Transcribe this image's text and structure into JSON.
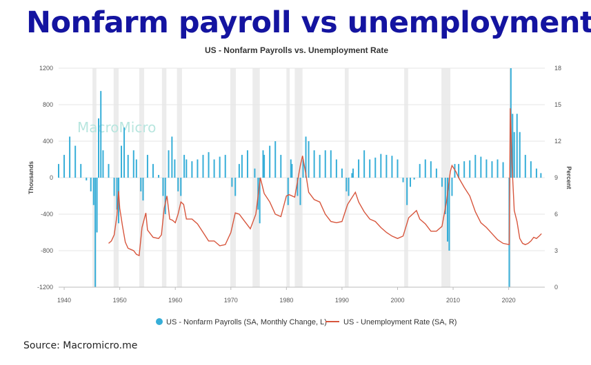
{
  "headline": "Nonfarm payroll vs unemployment",
  "source": "Source: Macromicro.me",
  "watermark": "MacroMicro",
  "colors": {
    "payroll": "#36aed8",
    "unemployment": "#d7553c",
    "recession": "#ececec",
    "headline": "#1414a0"
  },
  "chart_data": {
    "type": "bar+line",
    "title": "US - Nonfarm Payrolls vs. Unemployment Rate",
    "y_left_label": "Thousands",
    "y_right_label": "Percent",
    "y_left_range": [
      -1200,
      1200
    ],
    "y_right_range": [
      0,
      18
    ],
    "y_left_ticks": [
      "1200",
      "800",
      "400",
      "0",
      "-400",
      "-800",
      "-1200"
    ],
    "y_right_ticks": [
      "18",
      "15",
      "12",
      "9",
      "6",
      "3",
      "0"
    ],
    "x_range": [
      1939,
      2026.5
    ],
    "x_ticks": [
      "1940",
      "1950",
      "1960",
      "1970",
      "1980",
      "1990",
      "2000",
      "2010",
      "2020"
    ],
    "grid": true,
    "legend_position": "bottom",
    "recessions": [
      [
        1945.1,
        1945.8
      ],
      [
        1948.9,
        1949.8
      ],
      [
        1953.5,
        1954.4
      ],
      [
        1957.6,
        1958.4
      ],
      [
        1960.3,
        1961.2
      ],
      [
        1969.9,
        1970.9
      ],
      [
        1973.9,
        1975.2
      ],
      [
        1980.0,
        1980.6
      ],
      [
        1981.5,
        1982.9
      ],
      [
        1990.5,
        1991.2
      ],
      [
        2001.2,
        2001.9
      ],
      [
        2007.9,
        2009.5
      ],
      [
        2020.1,
        2020.4
      ]
    ],
    "series": [
      {
        "name": "US - Nonfarm Payrolls (SA, Monthly Change, L)",
        "type": "bar",
        "axis": "left",
        "points": [
          [
            1939.0,
            150
          ],
          [
            1940.0,
            250
          ],
          [
            1941.0,
            450
          ],
          [
            1942.0,
            350
          ],
          [
            1943.0,
            150
          ],
          [
            1944.0,
            -30
          ],
          [
            1944.8,
            -150
          ],
          [
            1945.3,
            -300
          ],
          [
            1945.6,
            -1200
          ],
          [
            1945.9,
            -600
          ],
          [
            1946.2,
            650
          ],
          [
            1946.6,
            950
          ],
          [
            1947.0,
            300
          ],
          [
            1948.0,
            150
          ],
          [
            1949.0,
            -200
          ],
          [
            1949.5,
            -350
          ],
          [
            1949.8,
            -500
          ],
          [
            1950.3,
            350
          ],
          [
            1950.8,
            550
          ],
          [
            1951.5,
            250
          ],
          [
            1952.5,
            300
          ],
          [
            1953.0,
            200
          ],
          [
            1953.8,
            -150
          ],
          [
            1954.2,
            -250
          ],
          [
            1955.0,
            250
          ],
          [
            1956.0,
            150
          ],
          [
            1957.0,
            30
          ],
          [
            1957.8,
            -200
          ],
          [
            1958.2,
            -400
          ],
          [
            1958.8,
            300
          ],
          [
            1959.4,
            450
          ],
          [
            1959.9,
            200
          ],
          [
            1960.5,
            -150
          ],
          [
            1961.0,
            -200
          ],
          [
            1961.6,
            250
          ],
          [
            1962.0,
            200
          ],
          [
            1963.0,
            180
          ],
          [
            1964.0,
            200
          ],
          [
            1965.0,
            250
          ],
          [
            1966.0,
            280
          ],
          [
            1967.0,
            200
          ],
          [
            1968.0,
            230
          ],
          [
            1969.0,
            250
          ],
          [
            1970.2,
            -100
          ],
          [
            1970.8,
            -200
          ],
          [
            1971.5,
            150
          ],
          [
            1972.0,
            250
          ],
          [
            1973.0,
            300
          ],
          [
            1974.3,
            100
          ],
          [
            1974.9,
            -350
          ],
          [
            1975.2,
            -500
          ],
          [
            1975.8,
            300
          ],
          [
            1976.0,
            250
          ],
          [
            1977.0,
            350
          ],
          [
            1978.0,
            400
          ],
          [
            1979.0,
            250
          ],
          [
            1980.3,
            -300
          ],
          [
            1980.8,
            200
          ],
          [
            1981.0,
            150
          ],
          [
            1982.0,
            -200
          ],
          [
            1982.5,
            -300
          ],
          [
            1983.0,
            200
          ],
          [
            1983.5,
            450
          ],
          [
            1984.0,
            400
          ],
          [
            1985.0,
            300
          ],
          [
            1986.0,
            250
          ],
          [
            1987.0,
            300
          ],
          [
            1988.0,
            300
          ],
          [
            1989.0,
            200
          ],
          [
            1990.0,
            100
          ],
          [
            1990.8,
            -150
          ],
          [
            1991.2,
            -200
          ],
          [
            1991.8,
            50
          ],
          [
            1992.0,
            100
          ],
          [
            1993.0,
            200
          ],
          [
            1994.0,
            300
          ],
          [
            1995.0,
            200
          ],
          [
            1996.0,
            220
          ],
          [
            1997.0,
            260
          ],
          [
            1998.0,
            250
          ],
          [
            1999.0,
            240
          ],
          [
            2000.0,
            200
          ],
          [
            2001.0,
            -50
          ],
          [
            2001.7,
            -300
          ],
          [
            2002.3,
            -100
          ],
          [
            2003.0,
            -20
          ],
          [
            2004.0,
            150
          ],
          [
            2005.0,
            200
          ],
          [
            2006.0,
            180
          ],
          [
            2007.0,
            100
          ],
          [
            2008.0,
            -100
          ],
          [
            2008.6,
            -400
          ],
          [
            2009.0,
            -700
          ],
          [
            2009.3,
            -800
          ],
          [
            2009.8,
            -200
          ],
          [
            2010.3,
            150
          ],
          [
            2011.0,
            150
          ],
          [
            2012.0,
            180
          ],
          [
            2013.0,
            190
          ],
          [
            2014.0,
            250
          ],
          [
            2015.0,
            230
          ],
          [
            2016.0,
            200
          ],
          [
            2017.0,
            180
          ],
          [
            2018.0,
            200
          ],
          [
            2019.0,
            170
          ],
          [
            2020.1,
            -1200
          ],
          [
            2020.4,
            1200
          ],
          [
            2020.7,
            700
          ],
          [
            2021.0,
            500
          ],
          [
            2021.5,
            700
          ],
          [
            2022.0,
            500
          ],
          [
            2023.0,
            250
          ],
          [
            2024.0,
            180
          ],
          [
            2025.0,
            100
          ],
          [
            2025.8,
            50
          ]
        ]
      },
      {
        "name": "US - Unemployment Rate (SA, R)",
        "type": "line",
        "axis": "right",
        "points": [
          [
            1948.0,
            3.6
          ],
          [
            1948.5,
            3.8
          ],
          [
            1949.0,
            4.3
          ],
          [
            1949.5,
            5.9
          ],
          [
            1949.8,
            7.9
          ],
          [
            1950.0,
            6.5
          ],
          [
            1950.5,
            5.0
          ],
          [
            1951.0,
            3.7
          ],
          [
            1951.5,
            3.2
          ],
          [
            1952.0,
            3.1
          ],
          [
            1952.5,
            3.0
          ],
          [
            1953.0,
            2.7
          ],
          [
            1953.5,
            2.6
          ],
          [
            1954.0,
            4.9
          ],
          [
            1954.7,
            6.1
          ],
          [
            1955.0,
            4.7
          ],
          [
            1956.0,
            4.1
          ],
          [
            1957.0,
            4.0
          ],
          [
            1957.5,
            4.3
          ],
          [
            1958.0,
            6.5
          ],
          [
            1958.5,
            7.5
          ],
          [
            1959.0,
            5.6
          ],
          [
            1959.5,
            5.5
          ],
          [
            1960.0,
            5.3
          ],
          [
            1960.5,
            6.0
          ],
          [
            1961.0,
            7.0
          ],
          [
            1961.5,
            6.8
          ],
          [
            1962.0,
            5.6
          ],
          [
            1963.0,
            5.6
          ],
          [
            1964.0,
            5.2
          ],
          [
            1965.0,
            4.5
          ],
          [
            1966.0,
            3.8
          ],
          [
            1967.0,
            3.8
          ],
          [
            1968.0,
            3.4
          ],
          [
            1969.0,
            3.5
          ],
          [
            1970.0,
            4.5
          ],
          [
            1970.8,
            6.1
          ],
          [
            1971.5,
            6.0
          ],
          [
            1972.5,
            5.4
          ],
          [
            1973.5,
            4.8
          ],
          [
            1974.5,
            6.0
          ],
          [
            1975.3,
            9.0
          ],
          [
            1976.0,
            7.7
          ],
          [
            1977.0,
            7.0
          ],
          [
            1978.0,
            6.0
          ],
          [
            1979.0,
            5.8
          ],
          [
            1980.0,
            7.5
          ],
          [
            1980.5,
            7.6
          ],
          [
            1981.5,
            7.4
          ],
          [
            1982.5,
            10.0
          ],
          [
            1982.9,
            10.8
          ],
          [
            1983.5,
            9.3
          ],
          [
            1984.0,
            7.8
          ],
          [
            1985.0,
            7.2
          ],
          [
            1986.0,
            7.0
          ],
          [
            1987.0,
            6.0
          ],
          [
            1988.0,
            5.4
          ],
          [
            1989.0,
            5.3
          ],
          [
            1990.0,
            5.4
          ],
          [
            1991.0,
            6.8
          ],
          [
            1992.4,
            7.8
          ],
          [
            1993.0,
            7.0
          ],
          [
            1994.0,
            6.2
          ],
          [
            1995.0,
            5.6
          ],
          [
            1996.0,
            5.4
          ],
          [
            1997.0,
            4.9
          ],
          [
            1998.0,
            4.5
          ],
          [
            1999.0,
            4.2
          ],
          [
            2000.0,
            4.0
          ],
          [
            2001.0,
            4.2
          ],
          [
            2002.0,
            5.7
          ],
          [
            2003.4,
            6.3
          ],
          [
            2004.0,
            5.6
          ],
          [
            2005.0,
            5.2
          ],
          [
            2006.0,
            4.6
          ],
          [
            2007.0,
            4.6
          ],
          [
            2008.0,
            5.0
          ],
          [
            2008.8,
            7.0
          ],
          [
            2009.5,
            9.5
          ],
          [
            2009.8,
            10.0
          ],
          [
            2010.5,
            9.5
          ],
          [
            2011.0,
            9.0
          ],
          [
            2012.0,
            8.2
          ],
          [
            2013.0,
            7.5
          ],
          [
            2014.0,
            6.2
          ],
          [
            2015.0,
            5.3
          ],
          [
            2016.0,
            4.9
          ],
          [
            2017.0,
            4.4
          ],
          [
            2018.0,
            3.9
          ],
          [
            2019.0,
            3.6
          ],
          [
            2020.1,
            3.5
          ],
          [
            2020.3,
            14.7
          ],
          [
            2020.6,
            10.0
          ],
          [
            2021.0,
            6.3
          ],
          [
            2021.5,
            5.4
          ],
          [
            2022.0,
            4.0
          ],
          [
            2022.5,
            3.6
          ],
          [
            2023.0,
            3.5
          ],
          [
            2023.5,
            3.6
          ],
          [
            2024.0,
            3.8
          ],
          [
            2024.5,
            4.1
          ],
          [
            2025.0,
            4.0
          ],
          [
            2025.5,
            4.2
          ],
          [
            2025.9,
            4.4
          ]
        ]
      }
    ]
  }
}
